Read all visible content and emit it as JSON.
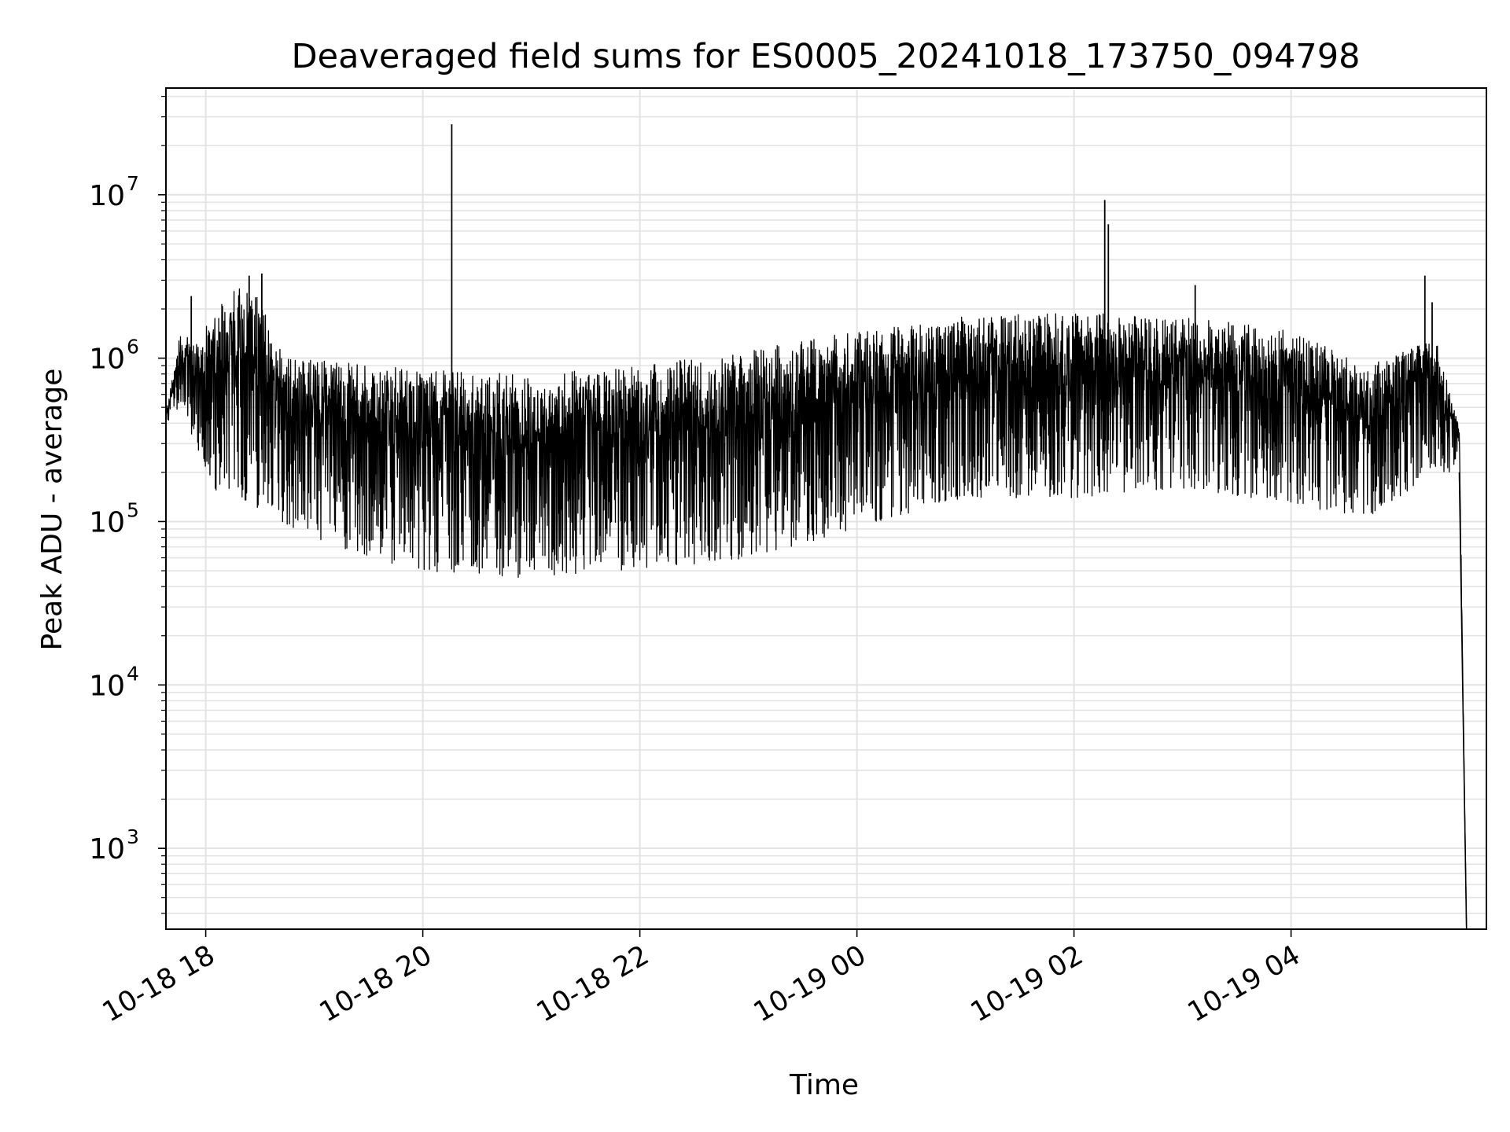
{
  "chart_data": {
    "type": "line",
    "title": "Deaveraged field sums for ES0005_20241018_173750_094798",
    "xlabel": "Time",
    "ylabel": "Peak ADU - average",
    "yscale": "log",
    "ylim": [
      320,
      45000000
    ],
    "xlim": [
      "2024-10-18 17:38",
      "2024-10-19 05:48"
    ],
    "grid": true,
    "line_color": "#000000",
    "grid_color": "#e3e3e3",
    "x_ticks": [
      {
        "t": "2024-10-18 18:00",
        "label": "10-18 18"
      },
      {
        "t": "2024-10-18 20:00",
        "label": "10-18 20"
      },
      {
        "t": "2024-10-18 22:00",
        "label": "10-18 22"
      },
      {
        "t": "2024-10-19 00:00",
        "label": "10-19 00"
      },
      {
        "t": "2024-10-19 02:00",
        "label": "10-19 02"
      },
      {
        "t": "2024-10-19 04:00",
        "label": "10-19 04"
      }
    ],
    "y_ticks": [
      {
        "value": 1000,
        "exp": "3"
      },
      {
        "value": 10000,
        "exp": "4"
      },
      {
        "value": 100000,
        "exp": "5"
      },
      {
        "value": 1000000,
        "exp": "6"
      },
      {
        "value": 10000000,
        "exp": "7"
      }
    ],
    "series": [
      {
        "style": "dense noisy signal; values below are approximate lower/upper envelope",
        "envelope": [
          {
            "t": "2024-10-18 17:38",
            "low": 400000,
            "high": 450000
          },
          {
            "t": "2024-10-18 17:46",
            "low": 500000,
            "high": 1500000
          },
          {
            "t": "2024-10-18 17:54",
            "low": 300000,
            "high": 1200000
          },
          {
            "t": "2024-10-18 18:06",
            "low": 150000,
            "high": 2000000
          },
          {
            "t": "2024-10-18 18:24",
            "low": 130000,
            "high": 3200000
          },
          {
            "t": "2024-10-18 18:40",
            "low": 100000,
            "high": 1200000
          },
          {
            "t": "2024-10-18 19:00",
            "low": 80000,
            "high": 1000000
          },
          {
            "t": "2024-10-18 19:30",
            "low": 60000,
            "high": 900000
          },
          {
            "t": "2024-10-18 20:00",
            "low": 50000,
            "high": 850000
          },
          {
            "t": "2024-10-18 21:00",
            "low": 45000,
            "high": 800000
          },
          {
            "t": "2024-10-18 22:00",
            "low": 50000,
            "high": 900000
          },
          {
            "t": "2024-10-18 23:00",
            "low": 60000,
            "high": 1100000
          },
          {
            "t": "2024-10-19 00:00",
            "low": 90000,
            "high": 1500000
          },
          {
            "t": "2024-10-19 01:00",
            "low": 140000,
            "high": 1800000
          },
          {
            "t": "2024-10-19 02:00",
            "low": 140000,
            "high": 1900000
          },
          {
            "t": "2024-10-19 03:00",
            "low": 160000,
            "high": 1800000
          },
          {
            "t": "2024-10-19 04:00",
            "low": 130000,
            "high": 1500000
          },
          {
            "t": "2024-10-19 04:40",
            "low": 100000,
            "high": 900000
          },
          {
            "t": "2024-10-19 05:20",
            "low": 200000,
            "high": 1300000
          },
          {
            "t": "2024-10-19 05:33",
            "low": 200000,
            "high": 400000
          },
          {
            "t": "2024-10-19 05:37",
            "low": 320,
            "high": 320
          }
        ],
        "spikes": [
          {
            "t": "2024-10-18 17:52",
            "value": 2400000
          },
          {
            "t": "2024-10-18 18:24",
            "value": 3200000
          },
          {
            "t": "2024-10-18 18:31",
            "value": 3300000
          },
          {
            "t": "2024-10-18 20:16",
            "value": 27000000
          },
          {
            "t": "2024-10-19 02:17",
            "value": 9300000
          },
          {
            "t": "2024-10-19 02:19",
            "value": 6600000
          },
          {
            "t": "2024-10-19 03:07",
            "value": 2800000
          },
          {
            "t": "2024-10-19 05:14",
            "value": 3200000
          },
          {
            "t": "2024-10-19 05:18",
            "value": 2200000
          }
        ]
      }
    ]
  }
}
